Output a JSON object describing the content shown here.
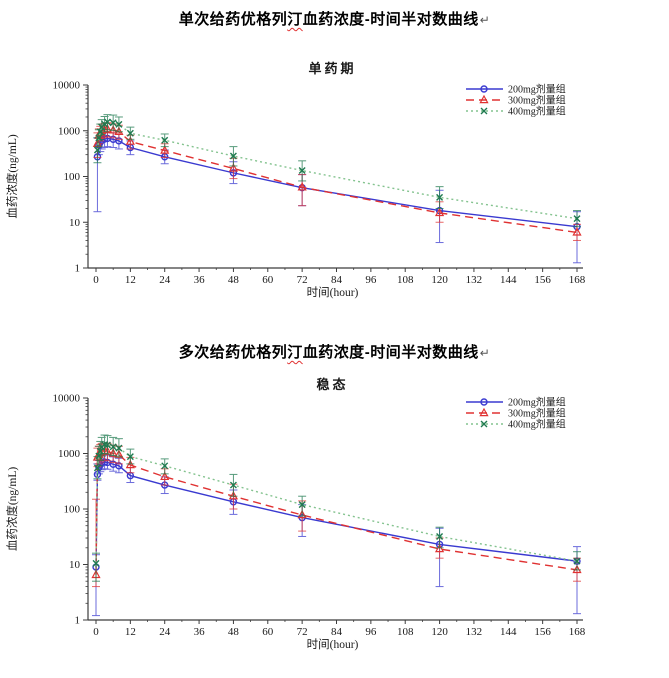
{
  "titles": {
    "chart1": {
      "prefix": "单次给药优格列",
      "misspelled": "汀",
      "suffix": "血药浓度-时间半对数曲线",
      "return_mark": "↵"
    },
    "chart2": {
      "prefix": "多次给药优格列",
      "misspelled": "汀",
      "suffix": "血药浓度-时间半对数曲线",
      "return_mark": "↵"
    }
  },
  "chart_data": [
    {
      "type": "line",
      "subtitle": "单药期",
      "xlabel": "时间(hour)",
      "ylabel": "血药浓度(ng/mL)",
      "y_scale": "log",
      "xlim": [
        0,
        168
      ],
      "ylim": [
        1,
        10000
      ],
      "x_major_ticks": [
        0,
        12,
        24,
        36,
        48,
        60,
        72,
        84,
        96,
        108,
        120,
        132,
        144,
        156,
        168
      ],
      "x_minor_step": 6,
      "y_ticks": [
        1,
        10,
        100,
        1000,
        10000
      ],
      "grid": false,
      "legend_position": "top-right",
      "series": [
        {
          "key": "200mg",
          "name": "200mg剂量组",
          "color": "#3a3ad0",
          "line": "solid",
          "marker": "circle",
          "x": [
            0.5,
            1,
            1.5,
            2,
            3,
            4,
            6,
            8,
            12,
            24,
            48,
            72,
            120,
            168
          ],
          "y": [
            270,
            480,
            560,
            620,
            660,
            680,
            650,
            600,
            430,
            270,
            120,
            57,
            18,
            8
          ],
          "err_lo": [
            17,
            300,
            350,
            400,
            430,
            450,
            430,
            400,
            300,
            190,
            70,
            23,
            3.6,
            1.3
          ],
          "err_hi": [
            700,
            700,
            780,
            850,
            900,
            950,
            900,
            830,
            600,
            380,
            210,
            110,
            50,
            17
          ]
        },
        {
          "key": "300mg",
          "name": "300mg剂量组",
          "color": "#e03232",
          "line": "dash",
          "marker": "triangle",
          "x": [
            0.5,
            1,
            1.5,
            2,
            3,
            4,
            6,
            8,
            12,
            24,
            48,
            72,
            120,
            168
          ],
          "y": [
            520,
            780,
            900,
            1000,
            1050,
            1080,
            1020,
            950,
            580,
            370,
            150,
            58,
            16,
            6
          ],
          "err_lo": [
            260,
            520,
            600,
            680,
            720,
            740,
            700,
            650,
            400,
            260,
            90,
            23,
            10,
            4
          ],
          "err_hi": [
            900,
            1100,
            1250,
            1400,
            1450,
            1500,
            1420,
            1320,
            800,
            520,
            250,
            110,
            28,
            9
          ]
        },
        {
          "key": "400mg",
          "name": "400mg剂量组",
          "color": "#1f7a50",
          "line_color": "#84c38f",
          "line": "dot",
          "marker": "x",
          "x": [
            0.5,
            1,
            1.5,
            2,
            3,
            4,
            6,
            8,
            12,
            24,
            48,
            72,
            120,
            168
          ],
          "y": [
            380,
            700,
            950,
            1200,
            1400,
            1550,
            1500,
            1380,
            880,
            620,
            280,
            135,
            35,
            12
          ],
          "err_lo": [
            200,
            460,
            640,
            820,
            950,
            1050,
            1020,
            950,
            650,
            450,
            170,
            80,
            20,
            8
          ],
          "err_hi": [
            700,
            1050,
            1400,
            1750,
            2050,
            2250,
            2200,
            2000,
            1200,
            850,
            450,
            220,
            60,
            18
          ]
        }
      ]
    },
    {
      "type": "line",
      "subtitle": "稳态",
      "xlabel": "时间(hour)",
      "ylabel": "血药浓度(ng/mL)",
      "y_scale": "log",
      "xlim": [
        0,
        168
      ],
      "ylim": [
        1,
        10000
      ],
      "x_major_ticks": [
        0,
        12,
        24,
        36,
        48,
        60,
        72,
        84,
        96,
        108,
        120,
        132,
        144,
        156,
        168
      ],
      "x_minor_step": 6,
      "y_ticks": [
        1,
        10,
        100,
        1000,
        10000
      ],
      "grid": false,
      "legend_position": "top-right",
      "series": [
        {
          "key": "200mg",
          "name": "200mg剂量组",
          "color": "#3a3ad0",
          "line": "solid",
          "marker": "circle",
          "x": [
            0,
            0.5,
            1,
            1.5,
            2,
            3,
            4,
            6,
            8,
            12,
            24,
            48,
            72,
            120,
            168
          ],
          "y": [
            9,
            420,
            560,
            620,
            680,
            700,
            690,
            640,
            600,
            400,
            270,
            135,
            70,
            23,
            11.5
          ],
          "err_lo": [
            1.2,
            330,
            430,
            470,
            510,
            530,
            520,
            480,
            450,
            300,
            190,
            80,
            32,
            4,
            1.3
          ],
          "err_hi": [
            15,
            650,
            750,
            830,
            900,
            950,
            930,
            870,
            820,
            560,
            380,
            220,
            120,
            45,
            21
          ]
        },
        {
          "key": "300mg",
          "name": "300mg剂量组",
          "color": "#e03232",
          "line": "dash",
          "marker": "triangle",
          "x": [
            0,
            0.5,
            1,
            1.5,
            2,
            3,
            4,
            6,
            8,
            12,
            24,
            48,
            72,
            120,
            168
          ],
          "y": [
            6.5,
            850,
            950,
            1020,
            1080,
            1100,
            1080,
            1000,
            950,
            620,
            380,
            170,
            78,
            19,
            8
          ],
          "err_lo": [
            4,
            580,
            650,
            700,
            740,
            760,
            740,
            690,
            650,
            450,
            270,
            100,
            40,
            13,
            5
          ],
          "err_hi": [
            150,
            1250,
            1350,
            1450,
            1520,
            1550,
            1520,
            1420,
            1350,
            850,
            530,
            280,
            140,
            30,
            13
          ]
        },
        {
          "key": "400mg",
          "name": "400mg剂量组",
          "color": "#1f7a50",
          "line_color": "#84c38f",
          "line": "dot",
          "marker": "x",
          "x": [
            0,
            0.5,
            1,
            1.5,
            2,
            3,
            4,
            6,
            8,
            12,
            24,
            48,
            72,
            120,
            168
          ],
          "y": [
            10.5,
            550,
            900,
            1100,
            1300,
            1450,
            1420,
            1320,
            1250,
            880,
            600,
            270,
            120,
            32,
            11.5
          ],
          "err_lo": [
            5,
            350,
            600,
            750,
            900,
            1000,
            980,
            920,
            870,
            650,
            430,
            170,
            75,
            20,
            8
          ],
          "err_hi": [
            16,
            880,
            1350,
            1650,
            1950,
            2150,
            2100,
            1950,
            1850,
            1200,
            800,
            420,
            170,
            47,
            17
          ]
        }
      ]
    }
  ]
}
